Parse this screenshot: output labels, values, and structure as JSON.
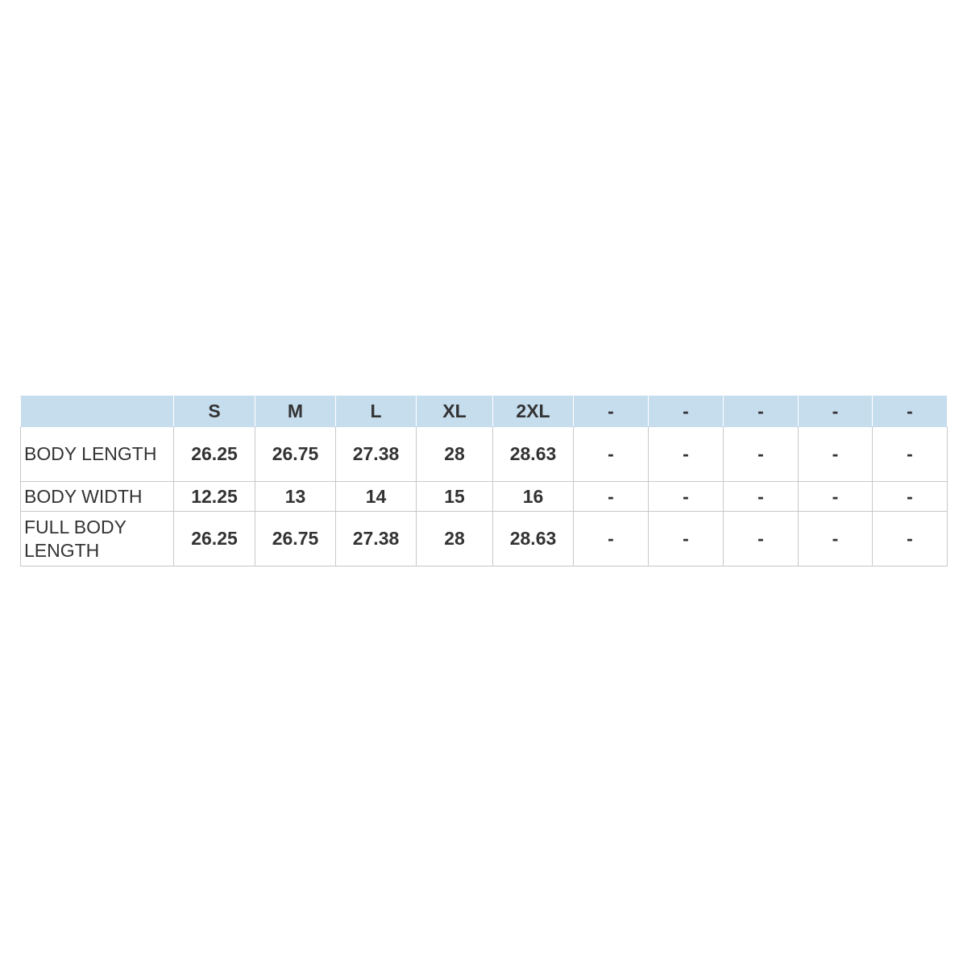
{
  "table": {
    "header": [
      "S",
      "M",
      "L",
      "XL",
      "2XL",
      "-",
      "-",
      "-",
      "-",
      "-"
    ],
    "rows": [
      {
        "label": "BODY LENGTH",
        "values": [
          "26.25",
          "26.75",
          "27.38",
          "28",
          "28.63",
          "-",
          "-",
          "-",
          "-",
          "-"
        ]
      },
      {
        "label": "BODY WIDTH",
        "values": [
          "12.25",
          "13",
          "14",
          "15",
          "16",
          "-",
          "-",
          "-",
          "-",
          "-"
        ]
      },
      {
        "label": "FULL BODY LENGTH",
        "values": [
          "26.25",
          "26.75",
          "27.38",
          "28",
          "28.63",
          "-",
          "-",
          "-",
          "-",
          "-"
        ]
      }
    ]
  }
}
